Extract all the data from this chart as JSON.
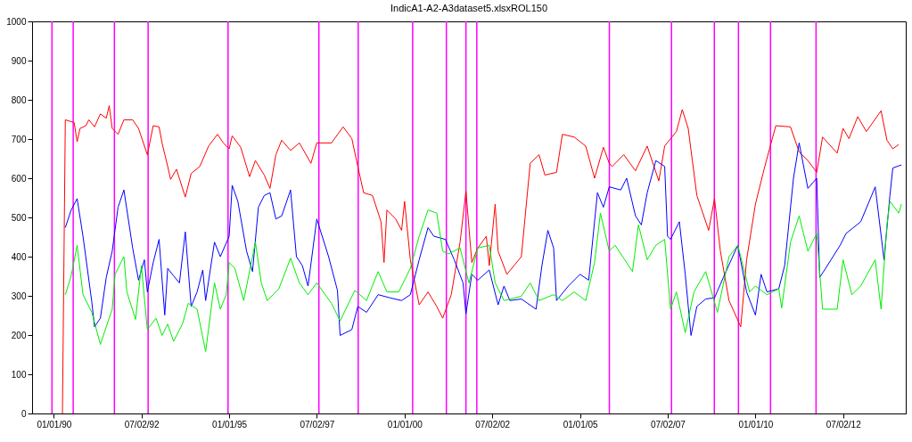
{
  "chart_data": {
    "type": "line",
    "title": "IndicA1-A2-A3dataset5.xlsxROL150",
    "xlim": [
      "1989-05-20",
      "2014-04-15"
    ],
    "xticks": [
      {
        "value": "1990-01-01",
        "label": "01/01/90"
      },
      {
        "value": "1992-07-02",
        "label": "07/02/92"
      },
      {
        "value": "1995-01-01",
        "label": "01/01/95"
      },
      {
        "value": "1997-07-02",
        "label": "07/02/97"
      },
      {
        "value": "2000-01-01",
        "label": "01/01/00"
      },
      {
        "value": "2002-07-02",
        "label": "07/02/02"
      },
      {
        "value": "2005-01-01",
        "label": "01/01/05"
      },
      {
        "value": "2007-07-02",
        "label": "07/02/07"
      },
      {
        "value": "2010-01-01",
        "label": "01/01/10"
      },
      {
        "value": "2012-07-02",
        "label": "07/02/12"
      }
    ],
    "ylim": [
      0,
      1000
    ],
    "yticks": [
      0,
      100,
      200,
      300,
      400,
      500,
      600,
      700,
      800,
      900,
      1000
    ],
    "grid": false,
    "ref_lines": [
      {
        "axis": "x",
        "value": "1989-12-13",
        "color": "#ff00ff"
      },
      {
        "axis": "x",
        "value": "1990-07-22",
        "color": "#ff00ff"
      },
      {
        "axis": "x",
        "value": "1991-09-24",
        "color": "#ff00ff"
      },
      {
        "axis": "x",
        "value": "1992-09-09",
        "color": "#ff00ff"
      },
      {
        "axis": "x",
        "value": "1994-12-20",
        "color": "#ff00ff"
      },
      {
        "axis": "x",
        "value": "1997-07-23",
        "color": "#ff00ff"
      },
      {
        "axis": "x",
        "value": "1998-09-05",
        "color": "#ff00ff"
      },
      {
        "axis": "x",
        "value": "2000-03-25",
        "color": "#ff00ff"
      },
      {
        "axis": "x",
        "value": "2001-03-11",
        "color": "#ff00ff"
      },
      {
        "axis": "x",
        "value": "2001-10-01",
        "color": "#ff00ff"
      },
      {
        "axis": "x",
        "value": "2002-01-22",
        "color": "#ff00ff"
      },
      {
        "axis": "x",
        "value": "2005-11-02",
        "color": "#ff00ff"
      },
      {
        "axis": "x",
        "value": "2007-08-11",
        "color": "#ff00ff"
      },
      {
        "axis": "x",
        "value": "2008-10-30",
        "color": "#ff00ff"
      },
      {
        "axis": "x",
        "value": "2009-07-08",
        "color": "#ff00ff"
      },
      {
        "axis": "x",
        "value": "2010-06-07",
        "color": "#ff00ff"
      },
      {
        "axis": "x",
        "value": "2011-09-24",
        "color": "#ff00ff"
      }
    ],
    "series": [
      {
        "color": "#ff0000",
        "x": [
          "1990-04",
          "1990-05",
          "1990-08",
          "1990-09",
          "1990-10",
          "1990-12",
          "1991-01",
          "1991-03",
          "1991-05",
          "1991-07",
          "1991-08",
          "1991-09",
          "1991-11",
          "1992-01",
          "1992-04",
          "1992-06",
          "1992-09",
          "1992-11",
          "1993-01",
          "1993-02",
          "1993-04",
          "1993-05",
          "1993-07",
          "1993-10",
          "1993-12",
          "1994-03",
          "1994-06",
          "1994-09",
          "1994-11",
          "1995-01",
          "1995-02",
          "1995-05",
          "1995-08",
          "1995-10",
          "1996-01",
          "1996-03",
          "1996-05",
          "1996-07",
          "1996-10",
          "1997-01",
          "1997-05",
          "1997-07",
          "1997-12",
          "1998-04",
          "1998-07",
          "1998-09",
          "1998-11",
          "1999-02",
          "1999-05",
          "1999-06",
          "1999-07",
          "1999-10",
          "1999-12",
          "2000-01",
          "2000-03",
          "2000-06",
          "2000-09",
          "2000-12",
          "2001-02",
          "2001-05",
          "2001-08",
          "2001-10",
          "2001-12",
          "2002-02",
          "2002-05",
          "2002-06",
          "2002-08",
          "2002-09",
          "2002-12",
          "2003-05",
          "2003-08",
          "2003-11",
          "2004-01",
          "2004-05",
          "2004-07",
          "2004-11",
          "2005-03",
          "2005-06",
          "2005-09",
          "2005-11",
          "2005-12",
          "2006-04",
          "2006-08",
          "2006-12",
          "2007-04",
          "2007-06",
          "2007-10",
          "2007-12",
          "2008-02",
          "2008-05",
          "2008-09",
          "2008-11",
          "2009-01",
          "2009-04",
          "2009-08",
          "2009-10",
          "2010-01",
          "2010-04",
          "2010-08",
          "2011-01",
          "2011-04",
          "2011-07",
          "2011-10",
          "2011-12",
          "2012-05",
          "2012-07",
          "2012-09",
          "2012-12",
          "2013-03",
          "2013-08",
          "2013-10",
          "2013-12",
          "2014-02"
        ],
        "values": [
          0,
          749,
          742,
          693,
          727,
          734,
          749,
          731,
          764,
          753,
          785,
          727,
          712,
          749,
          749,
          727,
          660,
          734,
          731,
          690,
          630,
          597,
          623,
          552,
          612,
          630,
          682,
          712,
          690,
          675,
          708,
          679,
          604,
          645,
          608,
          574,
          660,
          697,
          671,
          690,
          638,
          690,
          690,
          731,
          701,
          630,
          563,
          556,
          489,
          385,
          519,
          496,
          467,
          541,
          392,
          277,
          310,
          273,
          243,
          303,
          437,
          567,
          385,
          422,
          452,
          377,
          534,
          414,
          355,
          400,
          638,
          660,
          608,
          615,
          712,
          705,
          682,
          600,
          679,
          638,
          630,
          660,
          619,
          682,
          593,
          682,
          719,
          775,
          727,
          556,
          467,
          548,
          414,
          288,
          221,
          392,
          534,
          623,
          734,
          731,
          667,
          645,
          615,
          705,
          664,
          727,
          701,
          757,
          719,
          772,
          697,
          675,
          686
        ]
      },
      {
        "color": "#0000ff",
        "x": [
          "1990-05",
          "1990-07",
          "1990-09",
          "1990-11",
          "1991-02",
          "1991-03",
          "1991-05",
          "1991-07",
          "1991-09",
          "1991-11",
          "1992-01",
          "1992-04",
          "1992-06",
          "1992-08",
          "1992-09",
          "1992-11",
          "1993-01",
          "1993-03",
          "1993-04",
          "1993-06",
          "1993-08",
          "1993-10",
          "1993-12",
          "1994-02",
          "1994-04",
          "1994-05",
          "1994-08",
          "1994-10",
          "1995-01",
          "1995-02",
          "1995-04",
          "1995-07",
          "1995-09",
          "1995-11",
          "1996-01",
          "1996-03",
          "1996-05",
          "1996-07",
          "1996-10",
          "1996-12",
          "1997-02",
          "1997-04",
          "1997-07",
          "1997-11",
          "1998-02",
          "1998-03",
          "1998-07",
          "1998-09",
          "1998-12",
          "1999-04",
          "1999-08",
          "1999-12",
          "2000-03",
          "2000-06",
          "2000-09",
          "2000-11",
          "2001-03",
          "2001-06",
          "2001-09",
          "2001-10",
          "2001-12",
          "2002-02",
          "2002-06",
          "2002-09",
          "2002-11",
          "2003-01",
          "2003-05",
          "2003-10",
          "2003-12",
          "2004-02",
          "2004-04",
          "2004-05",
          "2004-09",
          "2005-01",
          "2005-04",
          "2005-07",
          "2005-09",
          "2005-11",
          "2006-03",
          "2006-05",
          "2006-08",
          "2006-10",
          "2006-12",
          "2007-03",
          "2007-06",
          "2007-07",
          "2007-08",
          "2007-11",
          "2008-01",
          "2008-03",
          "2008-05",
          "2008-08",
          "2008-11",
          "2009-02",
          "2009-07",
          "2009-10",
          "2010-01",
          "2010-03",
          "2010-05",
          "2010-09",
          "2010-11",
          "2011-02",
          "2011-04",
          "2011-07",
          "2011-10",
          "2011-11",
          "2012-01",
          "2012-06",
          "2012-08",
          "2013-01",
          "2013-06",
          "2013-09",
          "2013-11",
          "2013-12",
          "2014-03"
        ],
        "values": [
          474,
          519,
          548,
          452,
          284,
          221,
          243,
          347,
          414,
          526,
          570,
          422,
          340,
          392,
          310,
          385,
          444,
          251,
          370,
          351,
          333,
          463,
          273,
          310,
          366,
          288,
          437,
          400,
          452,
          582,
          541,
          414,
          362,
          526,
          556,
          563,
          496,
          504,
          570,
          400,
          377,
          325,
          496,
          400,
          314,
          199,
          214,
          273,
          258,
          303,
          295,
          288,
          303,
          392,
          474,
          452,
          444,
          392,
          333,
          254,
          355,
          340,
          366,
          277,
          325,
          288,
          292,
          266,
          377,
          467,
          422,
          288,
          325,
          355,
          340,
          563,
          526,
          578,
          570,
          600,
          504,
          481,
          563,
          645,
          630,
          452,
          444,
          489,
          355,
          199,
          273,
          292,
          295,
          347,
          429,
          310,
          251,
          355,
          310,
          318,
          377,
          600,
          690,
          574,
          600,
          347,
          370,
          429,
          459,
          489,
          578,
          392,
          556,
          626,
          634
        ]
      },
      {
        "color": "#00ee00",
        "x": [
          "1990-05",
          "1990-07",
          "1990-09",
          "1990-11",
          "1991-02",
          "1991-05",
          "1991-07",
          "1991-09",
          "1991-10",
          "1992-01",
          "1992-02",
          "1992-05",
          "1992-07",
          "1992-09",
          "1992-12",
          "1993-02",
          "1993-04",
          "1993-06",
          "1993-09",
          "1993-11",
          "1994-02",
          "1994-05",
          "1994-08",
          "1994-10",
          "1994-12",
          "1995-01",
          "1995-03",
          "1995-06",
          "1995-10",
          "1995-12",
          "1996-02",
          "1996-06",
          "1996-10",
          "1997-01",
          "1997-04",
          "1997-07",
          "1997-12",
          "1998-03",
          "1998-08",
          "1998-12",
          "1999-04",
          "1999-07",
          "1999-11",
          "2000-03",
          "2000-06",
          "2000-09",
          "2000-12",
          "2001-02",
          "2001-04",
          "2001-08",
          "2001-11",
          "2002-02",
          "2002-06",
          "2002-08",
          "2002-11",
          "2003-05",
          "2003-08",
          "2003-11",
          "2004-04",
          "2004-07",
          "2004-11",
          "2005-03",
          "2005-06",
          "2005-08",
          "2005-11",
          "2006-01",
          "2006-04",
          "2006-07",
          "2006-09",
          "2006-12",
          "2007-03",
          "2007-06",
          "2007-08",
          "2007-10",
          "2008-01",
          "2008-04",
          "2008-08",
          "2008-12",
          "2009-04",
          "2009-07",
          "2009-11",
          "2010-01",
          "2010-05",
          "2010-09",
          "2010-10",
          "2011-01",
          "2011-04",
          "2011-07",
          "2011-10",
          "2011-12",
          "2012-05",
          "2012-07",
          "2012-10",
          "2013-01",
          "2013-06",
          "2013-08",
          "2013-10",
          "2013-11",
          "2014-02",
          "2014-03"
        ],
        "values": [
          303,
          351,
          429,
          303,
          258,
          176,
          221,
          266,
          355,
          400,
          310,
          240,
          377,
          214,
          243,
          199,
          228,
          184,
          228,
          281,
          266,
          158,
          333,
          266,
          303,
          385,
          370,
          288,
          437,
          333,
          288,
          318,
          396,
          333,
          303,
          333,
          281,
          236,
          314,
          288,
          362,
          310,
          310,
          370,
          452,
          519,
          511,
          414,
          407,
          422,
          333,
          422,
          429,
          333,
          288,
          299,
          333,
          288,
          303,
          288,
          310,
          288,
          385,
          511,
          414,
          429,
          396,
          362,
          481,
          392,
          429,
          444,
          266,
          310,
          206,
          310,
          362,
          258,
          400,
          429,
          310,
          325,
          303,
          318,
          269,
          437,
          504,
          414,
          459,
          266,
          266,
          392,
          303,
          325,
          392,
          266,
          481,
          541,
          511,
          534
        ]
      }
    ]
  }
}
